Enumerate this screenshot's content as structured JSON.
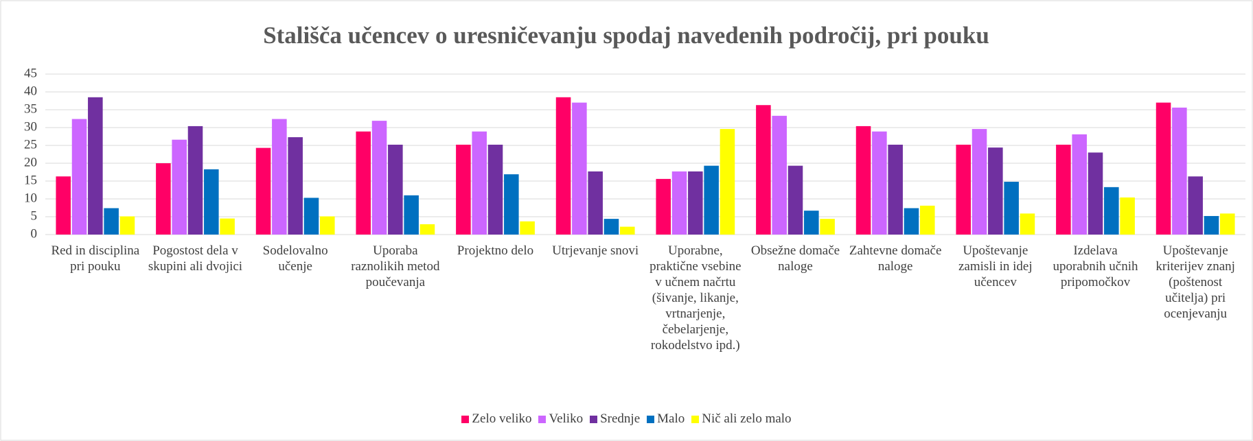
{
  "chart_data": {
    "type": "bar",
    "title": "Stališča učencev o uresničevanju spodaj navedenih področij, pri pouku",
    "categories": [
      "Red in disciplina pri pouku",
      "Pogostost dela v skupini ali dvojici",
      "Sodelovalno učenje",
      "Uporaba raznolikih metod poučevanja",
      "Projektno delo",
      "Utrjevanje snovi",
      "Uporabne, praktične vsebine v učnem načrtu (šivanje, likanje, vrtnarjenje, čebelarjenje, rokodelstvo ipd.)",
      "Obsežne domače naloge",
      "Zahtevne domače naloge",
      "Upoštevanje zamisli in idej učencev",
      "Izdelava uporabnih učnih pripomočkov",
      "Upoštevanje kriterijev znanj (poštenost učitelja) pri ocenjevanju"
    ],
    "series": [
      {
        "name": "Zelo veliko",
        "color": "#ff0066",
        "values": [
          16.3,
          20.0,
          24.3,
          28.9,
          25.2,
          38.5,
          15.6,
          36.3,
          30.4,
          25.2,
          25.2,
          37.0
        ]
      },
      {
        "name": "Veliko",
        "color": "#cc66ff",
        "values": [
          32.4,
          26.6,
          32.4,
          31.9,
          28.9,
          37.0,
          17.7,
          33.3,
          28.9,
          29.6,
          28.1,
          35.6
        ]
      },
      {
        "name": "Srednje",
        "color": "#7030a0",
        "values": [
          38.5,
          30.4,
          27.3,
          25.2,
          25.2,
          17.7,
          17.7,
          19.3,
          25.2,
          24.4,
          23.0,
          16.3
        ]
      },
      {
        "name": "Malo",
        "color": "#0070c0",
        "values": [
          7.4,
          18.3,
          10.3,
          11.0,
          16.9,
          4.4,
          19.3,
          6.7,
          7.4,
          14.8,
          13.3,
          5.2
        ]
      },
      {
        "name": "Nič ali zelo malo",
        "color": "#ffff00",
        "values": [
          5.1,
          4.5,
          5.1,
          2.9,
          3.7,
          2.2,
          29.6,
          4.4,
          8.1,
          5.9,
          10.4,
          5.9
        ]
      }
    ],
    "ylim": [
      0,
      45
    ],
    "yticks": [
      0,
      5,
      10,
      15,
      20,
      25,
      30,
      35,
      40,
      45
    ],
    "grid": true,
    "legend": "bottom"
  }
}
